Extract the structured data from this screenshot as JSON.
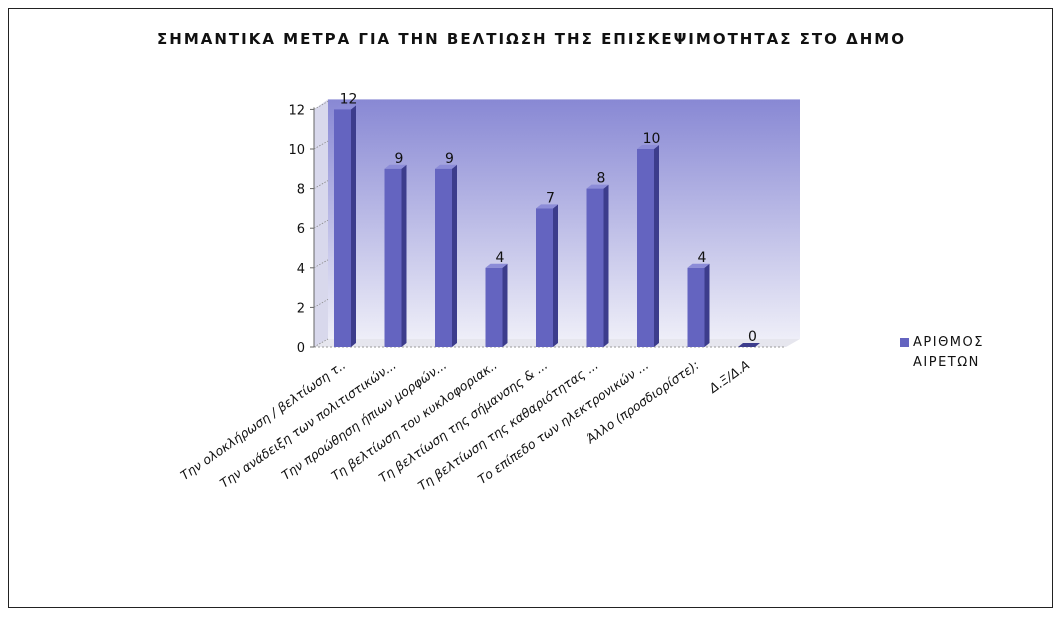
{
  "chart_data": {
    "type": "bar",
    "title": "ΣΗΜΑΝΤΙΚΑ ΜΕΤΡΑ ΓΙΑ ΤΗΝ ΒΕΛΤΙΩΣΗ ΤΗΣ ΕΠΙΣΚΕΨΙΜΟΤΗΤΑΣ ΣΤΟ ΔΗΜΟ",
    "categories": [
      "Την ολοκλήρωση / βελτίωση τ..",
      "Την ανάδειξη των πολιτιστικών...",
      "Την προώθηση ήπιων μορφών...",
      "Τη βελτίωση του κυκλοφοριακ..",
      "Τη βελτίωση της σήμανσης & ...",
      "Τη βελτίωση της καθαριότητας ...",
      "Το επίπεδο των ηλεκτρονικών ...",
      "Άλλο (προσδιορίστε):",
      "Δ.Ξ/Δ.Α"
    ],
    "series": [
      {
        "name": "ΑΡΙΘΜΟΣ ΑΙΡΕΤΩΝ",
        "values": [
          12,
          9,
          9,
          4,
          7,
          8,
          10,
          4,
          0
        ]
      }
    ],
    "y_ticks": [
      "0",
      "2",
      "4",
      "6",
      "8",
      "10",
      "12"
    ],
    "ylim": [
      0,
      12
    ],
    "xlabel": "",
    "ylabel": "",
    "legend_position": "right",
    "three_d": true,
    "grid": false,
    "colors": {
      "bar_front": "#6464c0",
      "bar_side": "#3c3c8c",
      "bar_top": "#8c8cd8",
      "wall_top": "#8888d4",
      "wall_bottom": "#eeeef8",
      "floor": "#e6e6ee"
    }
  }
}
